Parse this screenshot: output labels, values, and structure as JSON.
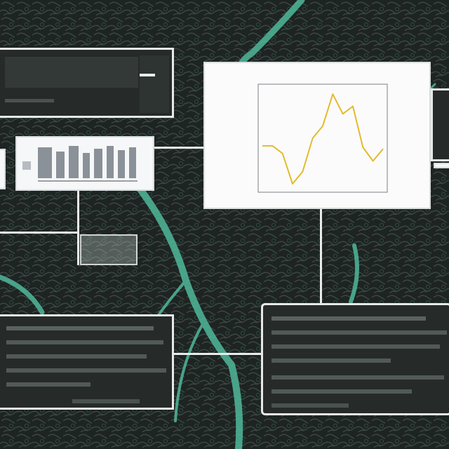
{
  "palette": {
    "background": "#1e2422",
    "vein": "#4fb89a",
    "panel_dark": "#262a29",
    "panel_border": "#e6e9e8",
    "chart_line": "#e2bb2e"
  },
  "icons": {
    "leaf_texture": "organic-texture-icon"
  },
  "chart_data": {
    "type": "line",
    "title": "",
    "xlabel": "",
    "ylabel": "",
    "xlim": [
      0,
      6
    ],
    "ylim": [
      0,
      6
    ],
    "grid": false,
    "legend": "none",
    "series": [
      {
        "values_x": [
          0,
          0.5,
          1.0,
          1.5,
          2.0,
          2.5,
          3.0,
          3.5,
          4.0,
          4.5,
          5.0,
          5.5,
          6.0
        ],
        "values_y": [
          2.5,
          2.5,
          2.0,
          0.0,
          0.8,
          3.0,
          3.8,
          5.9,
          4.6,
          5.1,
          2.4,
          1.5,
          2.3
        ]
      }
    ]
  }
}
